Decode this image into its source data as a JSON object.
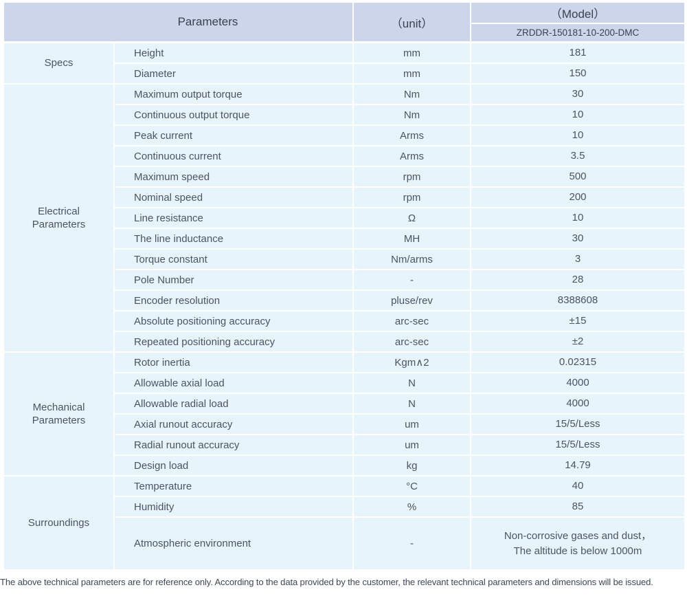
{
  "header": {
    "parameters_label": "Parameters",
    "unit_label": "（unit）",
    "model_label": "（Model）",
    "model_value": "ZRDDR-150181-10-200-DMC"
  },
  "sections": [
    {
      "category_lines": [
        "Specs"
      ],
      "rows": [
        {
          "param": "Height",
          "unit": "mm",
          "value": "181"
        },
        {
          "param": "Diameter",
          "unit": "mm",
          "value": "150"
        }
      ]
    },
    {
      "category_lines": [
        "Electrical",
        "Parameters"
      ],
      "rows": [
        {
          "param": "Maximum output torque",
          "unit": "Nm",
          "value": "30"
        },
        {
          "param": "Continuous output torque",
          "unit": "Nm",
          "value": "10"
        },
        {
          "param": "Peak current",
          "unit": "Arms",
          "value": "10"
        },
        {
          "param": "Continuous current",
          "unit": "Arms",
          "value": "3.5"
        },
        {
          "param": "Maximum speed",
          "unit": "rpm",
          "value": "500"
        },
        {
          "param": "Nominal speed",
          "unit": "rpm",
          "value": "200"
        },
        {
          "param": "Line resistance",
          "unit": "Ω",
          "value": "10"
        },
        {
          "param": "The line inductance",
          "unit": "MH",
          "value": "30"
        },
        {
          "param": "Torque constant",
          "unit": "Nm/arms",
          "value": "3"
        },
        {
          "param": "Pole Number",
          "unit": "-",
          "value": "28"
        },
        {
          "param": "Encoder resolution",
          "unit": "pluse/rev",
          "value": "8388608"
        },
        {
          "param": "Absolute positioning accuracy",
          "unit": "arc-sec",
          "value": "±15"
        },
        {
          "param": "Repeated positioning accuracy",
          "unit": "arc-sec",
          "value": "±2"
        }
      ]
    },
    {
      "category_lines": [
        "Mechanical",
        "Parameters"
      ],
      "rows": [
        {
          "param": "Rotor inertia",
          "unit": "Kgm∧2",
          "value": "0.02315"
        },
        {
          "param": "Allowable axial load",
          "unit": "N",
          "value": "4000"
        },
        {
          "param": "Allowable radial load",
          "unit": "N",
          "value": "4000"
        },
        {
          "param": "Axial runout accuracy",
          "unit": "um",
          "value": "15/5/Less"
        },
        {
          "param": "Radial runout accuracy",
          "unit": "um",
          "value": "15/5/Less"
        },
        {
          "param": "Design load",
          "unit": "kg",
          "value": "14.79"
        }
      ]
    },
    {
      "category_lines": [
        "Surroundings"
      ],
      "rows": [
        {
          "param": "Temperature",
          "unit": "°C",
          "value": "40"
        },
        {
          "param": "Humidity",
          "unit": "%",
          "value": "85"
        },
        {
          "param": "Atmospheric environment",
          "unit": "-",
          "value_lines": [
            "Non-corrosive gases and dust，",
            "The altitude is below 1000m"
          ],
          "tall": true
        }
      ]
    }
  ],
  "footnote": "The above technical parameters are for reference only. According to the data provided by the customer, the relevant technical parameters and dimensions will be issued.",
  "colors": {
    "header_bg": "#ccd5e9",
    "cell_bg": "#e7f4fc",
    "divider": "#ffffff",
    "header_text": "#39424f",
    "body_text": "#4a5462"
  }
}
